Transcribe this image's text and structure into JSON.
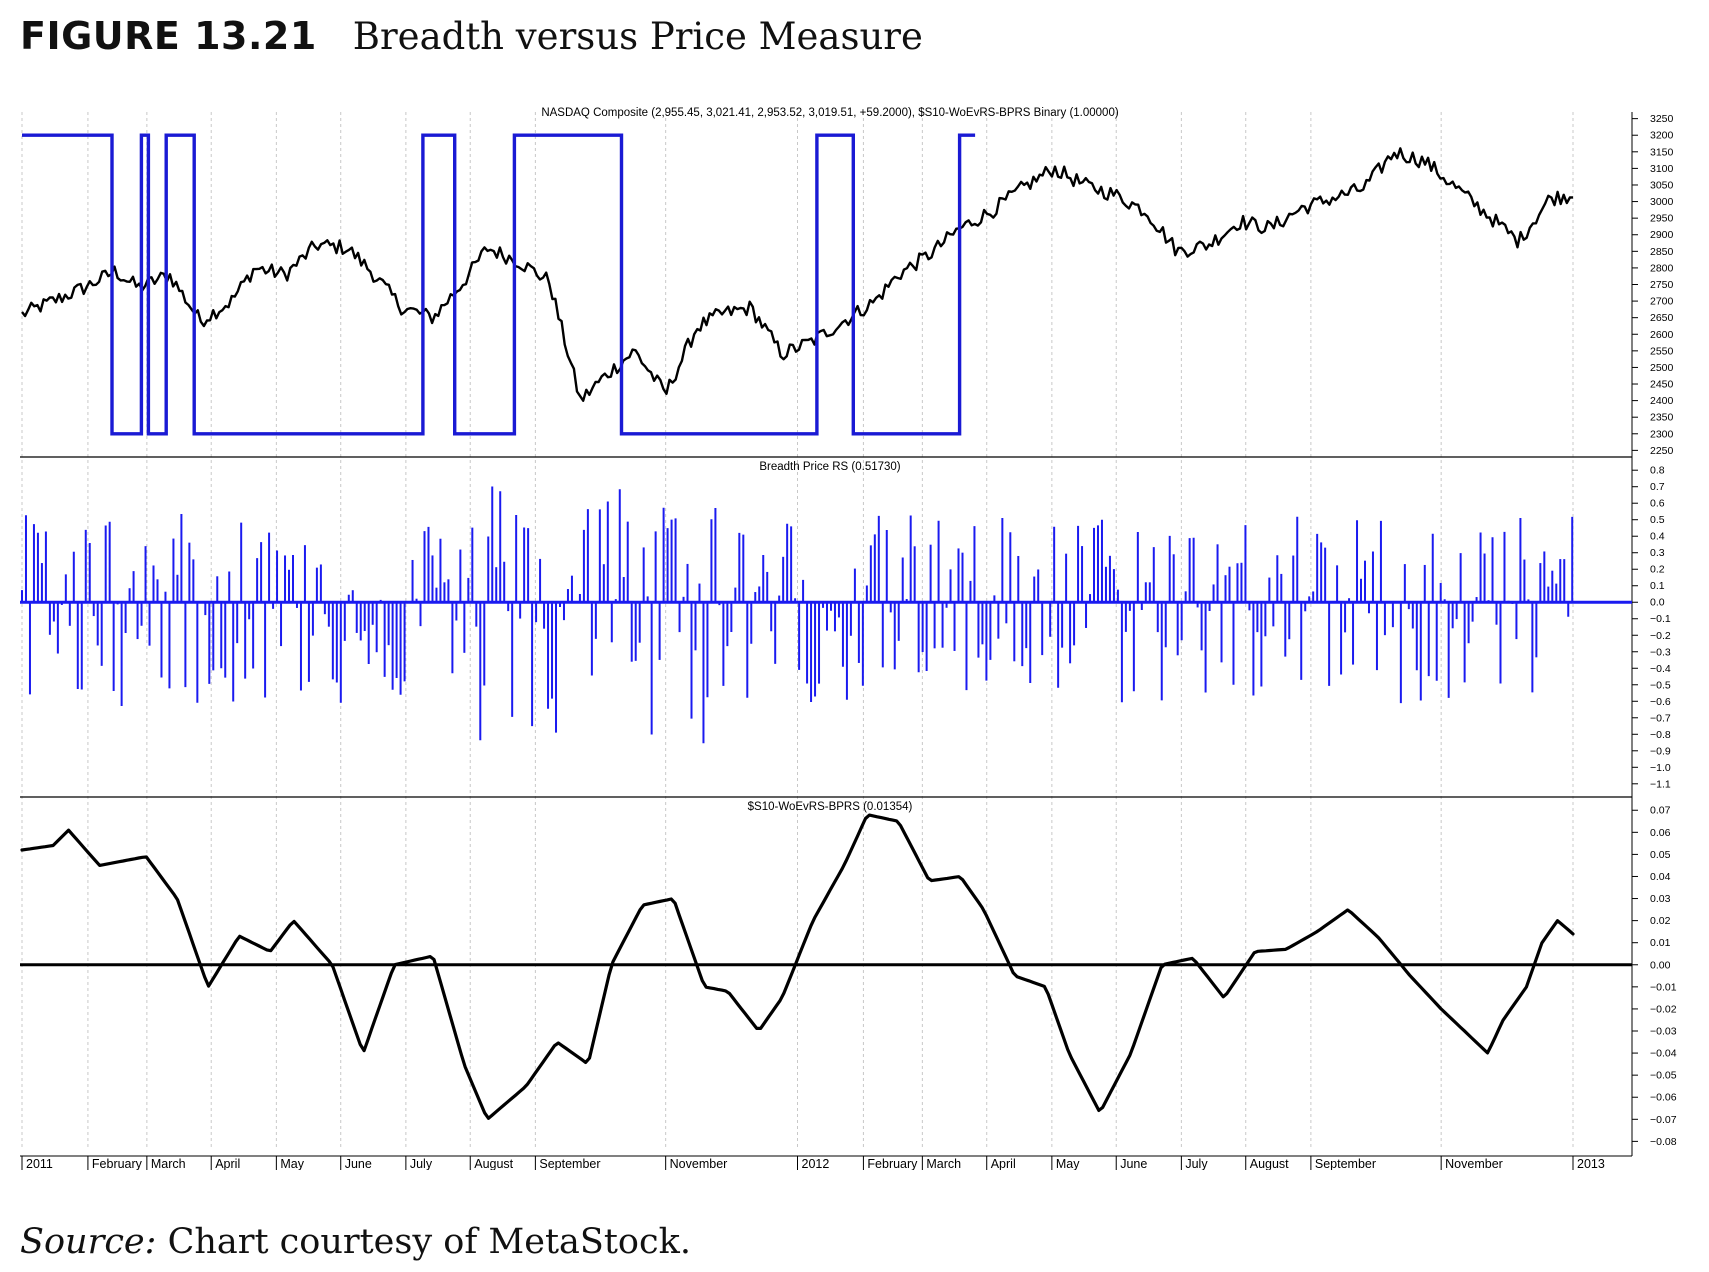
{
  "figure": {
    "label": "FIGURE 13.21",
    "title": "Breadth versus Price Measure",
    "source_label": "Source:",
    "source_text": " Chart courtesy of MetaStock."
  },
  "colors": {
    "price": "#000000",
    "binary": "#1a1ad4",
    "histogram": "#1a1af0",
    "oscillator": "#000000",
    "grid": "#c8c8c8"
  },
  "chart_data": [
    {
      "type": "line",
      "title": "NASDAQ Composite (2,955.45, 3,021.41, 2,953.52, 3,019.51, +59.2000), $S10-WoEvRS-BPRS Binary (1.00000)",
      "ylim": [
        2230,
        3270
      ],
      "yticks": [
        3250,
        3200,
        3150,
        3100,
        3050,
        3000,
        2950,
        2900,
        2850,
        2800,
        2750,
        2700,
        2650,
        2600,
        2550,
        2500,
        2450,
        2400,
        2350,
        2300,
        2250
      ],
      "series": [
        {
          "name": "NASDAQ Composite",
          "x": [
            2011.0,
            2011.04,
            2011.08,
            2011.12,
            2011.15,
            2011.19,
            2011.23,
            2011.27,
            2011.3,
            2011.34,
            2011.38,
            2011.42,
            2011.45,
            2011.49,
            2011.53,
            2011.57,
            2011.6,
            2011.64,
            2011.68,
            2011.72,
            2011.75,
            2011.79,
            2011.83,
            2011.87,
            2011.9,
            2011.94,
            2011.98,
            2012.02,
            2012.06,
            2012.1,
            2012.13,
            2012.17,
            2012.21,
            2012.25,
            2012.29,
            2012.33,
            2012.37,
            2012.41,
            2012.45,
            2012.49,
            2012.53,
            2012.57,
            2012.61,
            2012.65,
            2012.69,
            2012.73,
            2012.77,
            2012.81,
            2012.85,
            2012.89,
            2012.93,
            2012.97,
            2013.0
          ],
          "values": [
            2660,
            2700,
            2740,
            2790,
            2740,
            2780,
            2640,
            2700,
            2800,
            2780,
            2870,
            2860,
            2790,
            2680,
            2650,
            2760,
            2860,
            2820,
            2760,
            2400,
            2470,
            2550,
            2420,
            2620,
            2660,
            2680,
            2540,
            2580,
            2640,
            2700,
            2780,
            2840,
            2920,
            2970,
            3040,
            3100,
            3050,
            3020,
            2970,
            2850,
            2870,
            2940,
            2920,
            2980,
            3010,
            3040,
            3150,
            3120,
            3040,
            2960,
            2880,
            3010,
            3020
          ]
        },
        {
          "name": "$S10-WoEvRS-BPRS Binary",
          "steps": [
            {
              "start": 2011.0,
              "end": 2011.116,
              "value": 1
            },
            {
              "start": 2011.116,
              "end": 2011.154,
              "value": 0
            },
            {
              "start": 2011.154,
              "end": 2011.163,
              "value": 1
            },
            {
              "start": 2011.163,
              "end": 2011.186,
              "value": 0
            },
            {
              "start": 2011.186,
              "end": 2011.222,
              "value": 1
            },
            {
              "start": 2011.222,
              "end": 2011.517,
              "value": 0
            },
            {
              "start": 2011.517,
              "end": 2011.558,
              "value": 1
            },
            {
              "start": 2011.558,
              "end": 2011.635,
              "value": 0
            },
            {
              "start": 2011.635,
              "end": 2011.773,
              "value": 1
            },
            {
              "start": 2011.773,
              "end": 2012.025,
              "value": 0
            },
            {
              "start": 2012.025,
              "end": 2012.072,
              "value": 1
            },
            {
              "start": 2012.072,
              "end": 2012.209,
              "value": 0
            },
            {
              "start": 2012.209,
              "end": 2012.229,
              "value": 1
            }
          ],
          "low": 2300,
          "high": 3200
        }
      ]
    },
    {
      "type": "bar",
      "title": "Breadth Price RS (0.51730)",
      "ylim": [
        -1.18,
        0.88
      ],
      "yticks": [
        0.8,
        0.7,
        0.6,
        0.5,
        0.4,
        0.3,
        0.2,
        0.1,
        0.0,
        -0.1,
        -0.2,
        -0.3,
        -0.4,
        -0.5,
        -0.6,
        -0.7,
        -0.8,
        -0.9,
        -1.0,
        -1.1
      ],
      "x_start": 2011.0,
      "x_end": 2012.999,
      "last_value": 0.5173
    },
    {
      "type": "line",
      "title": "$S10-WoEvRS-BPRS (0.01354)",
      "ylim": [
        -0.083,
        0.076
      ],
      "yticks": [
        0.07,
        0.06,
        0.05,
        0.04,
        0.03,
        0.02,
        0.01,
        0.0,
        -0.01,
        -0.02,
        -0.03,
        -0.04,
        -0.05,
        -0.06,
        -0.07,
        -0.08
      ],
      "x": [
        2011.0,
        2011.04,
        2011.06,
        2011.1,
        2011.16,
        2011.2,
        2011.24,
        2011.28,
        2011.32,
        2011.35,
        2011.4,
        2011.44,
        2011.48,
        2011.53,
        2011.57,
        2011.6,
        2011.65,
        2011.69,
        2011.73,
        2011.76,
        2011.8,
        2011.84,
        2011.88,
        2011.91,
        2011.95,
        2011.98,
        2012.02,
        2012.06,
        2012.09,
        2012.13,
        2012.17,
        2012.21,
        2012.24,
        2012.28,
        2012.32,
        2012.35,
        2012.39,
        2012.43,
        2012.47,
        2012.51,
        2012.55,
        2012.59,
        2012.63,
        2012.67,
        2012.71,
        2012.75,
        2012.79,
        2012.83,
        2012.86,
        2012.89,
        2012.91,
        2012.94,
        2012.96,
        2012.98,
        2013.0
      ],
      "values": [
        0.052,
        0.054,
        0.061,
        0.045,
        0.049,
        0.03,
        -0.01,
        0.013,
        0.006,
        0.02,
        0.0,
        -0.04,
        0.0,
        0.004,
        -0.045,
        -0.07,
        -0.055,
        -0.035,
        -0.045,
        0.0,
        0.027,
        0.03,
        -0.01,
        -0.012,
        -0.03,
        -0.015,
        0.02,
        0.045,
        0.068,
        0.065,
        0.038,
        0.04,
        0.025,
        -0.005,
        -0.01,
        -0.04,
        -0.067,
        -0.04,
        0.0,
        0.003,
        -0.015,
        0.006,
        0.007,
        0.015,
        0.025,
        0.012,
        -0.005,
        -0.02,
        -0.03,
        -0.04,
        -0.025,
        -0.01,
        0.01,
        0.02,
        0.014
      ]
    }
  ],
  "x_axis": {
    "labels": [
      "2011",
      "February",
      "March",
      "April",
      "May",
      "June",
      "July",
      "August",
      "September",
      "November",
      "2012",
      "February",
      "March",
      "April",
      "May",
      "June",
      "July",
      "August",
      "September",
      "November",
      "2013"
    ],
    "positions": [
      2011.0,
      2011.085,
      2011.161,
      2011.244,
      2011.328,
      2011.411,
      2011.495,
      2011.578,
      2011.662,
      2011.83,
      2012.0,
      2012.085,
      2012.161,
      2012.244,
      2012.328,
      2012.411,
      2012.495,
      2012.578,
      2012.662,
      2012.83,
      2013.0
    ]
  }
}
